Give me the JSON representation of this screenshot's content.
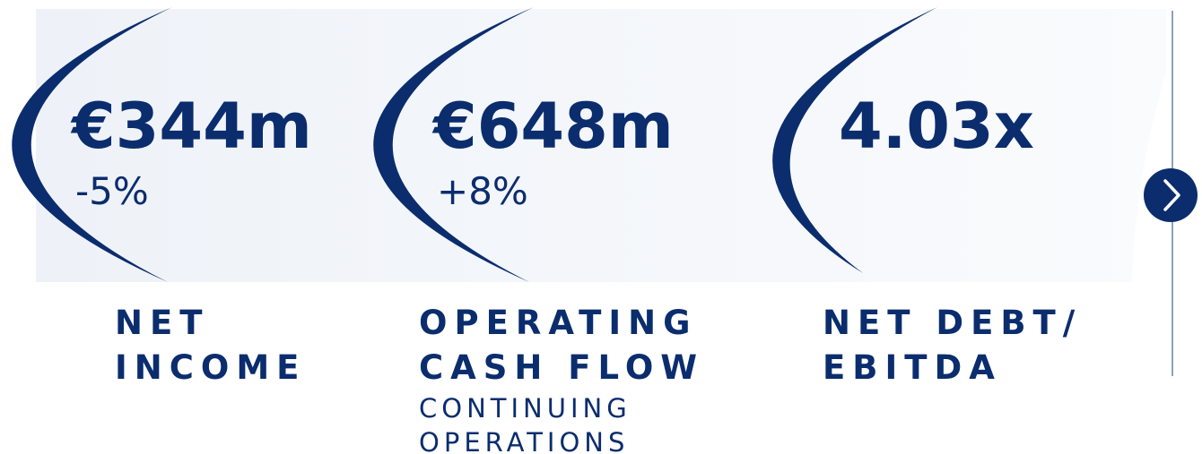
{
  "kpis": [
    {
      "value": "€344m",
      "change": "-5%",
      "label": [
        "NET",
        "INCOME"
      ],
      "sublabel": []
    },
    {
      "value": "€648m",
      "change": "+8%",
      "label": [
        "OPERATING",
        "CASH FLOW"
      ],
      "sublabel": [
        "CONTINUING",
        "OPERATIONS"
      ]
    },
    {
      "value": "4.03x",
      "change": null,
      "label": [
        "NET DEBT/",
        "EBITDA"
      ],
      "sublabel": []
    }
  ]
}
